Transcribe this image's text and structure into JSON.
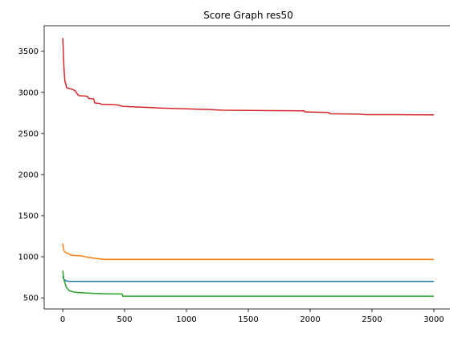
{
  "chart_data": {
    "type": "line",
    "title": "Score Graph res50",
    "xlabel": "",
    "ylabel": "",
    "xlim": [
      -150,
      3150
    ],
    "ylim": [
      365,
      3810
    ],
    "xticks": [
      0,
      500,
      1000,
      1500,
      2000,
      2500,
      3000
    ],
    "yticks": [
      500,
      1000,
      1500,
      2000,
      2500,
      3000,
      3500
    ],
    "grid": false,
    "series": [
      {
        "color": "#1f77b4",
        "points": [
          [
            0,
            760
          ],
          [
            5,
            740
          ],
          [
            10,
            725
          ],
          [
            20,
            712
          ],
          [
            30,
            706
          ],
          [
            50,
            702
          ],
          [
            100,
            700
          ],
          [
            300,
            700
          ],
          [
            1000,
            700
          ],
          [
            2000,
            700
          ],
          [
            3000,
            700
          ]
        ]
      },
      {
        "color": "#ff7f0e",
        "points": [
          [
            0,
            1160
          ],
          [
            5,
            1110
          ],
          [
            10,
            1075
          ],
          [
            20,
            1055
          ],
          [
            30,
            1045
          ],
          [
            50,
            1035
          ],
          [
            70,
            1020
          ],
          [
            100,
            1015
          ],
          [
            150,
            1012
          ],
          [
            180,
            1000
          ],
          [
            220,
            990
          ],
          [
            260,
            980
          ],
          [
            300,
            975
          ],
          [
            330,
            968
          ],
          [
            500,
            968
          ],
          [
            1000,
            968
          ],
          [
            2000,
            968
          ],
          [
            3000,
            968
          ]
        ]
      },
      {
        "color": "#2ca02c",
        "points": [
          [
            0,
            830
          ],
          [
            5,
            770
          ],
          [
            10,
            720
          ],
          [
            20,
            670
          ],
          [
            30,
            625
          ],
          [
            40,
            610
          ],
          [
            50,
            590
          ],
          [
            60,
            585
          ],
          [
            80,
            575
          ],
          [
            100,
            568
          ],
          [
            150,
            563
          ],
          [
            200,
            558
          ],
          [
            250,
            555
          ],
          [
            300,
            552
          ],
          [
            400,
            549
          ],
          [
            480,
            547
          ],
          [
            485,
            520
          ],
          [
            1000,
            520
          ],
          [
            2000,
            520
          ],
          [
            3000,
            520
          ]
        ]
      },
      {
        "color": "#d62728",
        "points": [
          [
            0,
            3660
          ],
          [
            3,
            3560
          ],
          [
            6,
            3420
          ],
          [
            10,
            3300
          ],
          [
            14,
            3200
          ],
          [
            18,
            3130
          ],
          [
            25,
            3100
          ],
          [
            30,
            3060
          ],
          [
            40,
            3050
          ],
          [
            60,
            3045
          ],
          [
            80,
            3035
          ],
          [
            100,
            3020
          ],
          [
            120,
            2975
          ],
          [
            130,
            2960
          ],
          [
            180,
            2955
          ],
          [
            200,
            2950
          ],
          [
            210,
            2925
          ],
          [
            250,
            2920
          ],
          [
            260,
            2870
          ],
          [
            300,
            2865
          ],
          [
            310,
            2855
          ],
          [
            400,
            2852
          ],
          [
            450,
            2845
          ],
          [
            480,
            2830
          ],
          [
            600,
            2822
          ],
          [
            700,
            2815
          ],
          [
            800,
            2808
          ],
          [
            1000,
            2800
          ],
          [
            1100,
            2795
          ],
          [
            1200,
            2790
          ],
          [
            1300,
            2782
          ],
          [
            1500,
            2780
          ],
          [
            1700,
            2778
          ],
          [
            1950,
            2775
          ],
          [
            1960,
            2762
          ],
          [
            2150,
            2755
          ],
          [
            2160,
            2740
          ],
          [
            2400,
            2735
          ],
          [
            2450,
            2728
          ],
          [
            2700,
            2728
          ],
          [
            3000,
            2726
          ]
        ]
      }
    ]
  }
}
